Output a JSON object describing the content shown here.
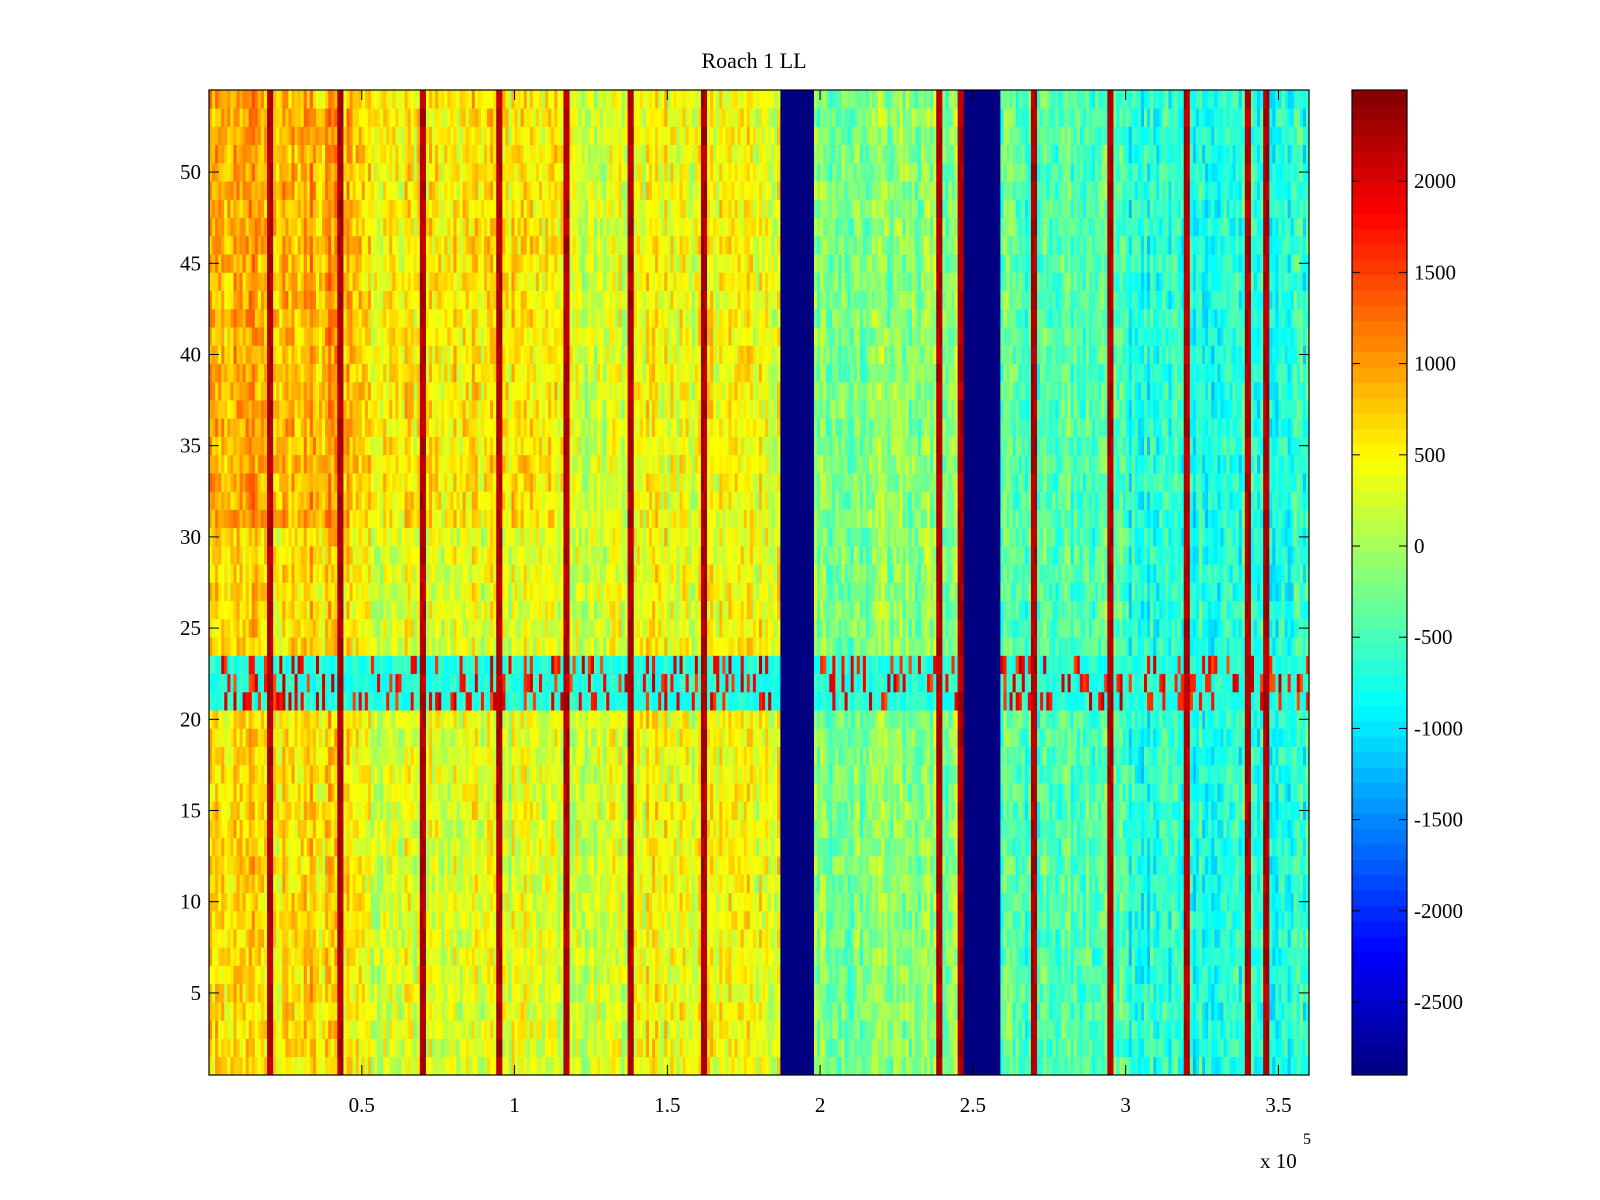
{
  "chart_data": {
    "type": "heatmap",
    "title": "Roach 1 LL",
    "xlabel": "",
    "ylabel": "",
    "x_range": [
      0,
      360000
    ],
    "y_range": [
      0.5,
      54.5
    ],
    "x_ticks": [
      50000,
      100000,
      150000,
      200000,
      250000,
      300000,
      350000
    ],
    "x_tick_labels": [
      "0.5",
      "1",
      "1.5",
      "2",
      "2.5",
      "3",
      "3.5"
    ],
    "x_exponent_label": "x 10",
    "x_exponent_power": "5",
    "y_ticks": [
      5,
      10,
      15,
      20,
      25,
      30,
      35,
      40,
      45,
      50
    ],
    "y_tick_labels": [
      "5",
      "10",
      "15",
      "20",
      "25",
      "30",
      "35",
      "40",
      "45",
      "50"
    ],
    "colorbar": {
      "colormap": "jet",
      "range": [
        -2900,
        2500
      ],
      "ticks": [
        -2500,
        -2000,
        -1500,
        -1000,
        -500,
        0,
        500,
        1000,
        1500,
        2000
      ],
      "tick_labels": [
        "-2500",
        "-2000",
        "-1500",
        "-1000",
        "-500",
        "0",
        "500",
        "1000",
        "1500",
        "2000"
      ]
    },
    "approx_row_band_values": [
      {
        "x_range": [
          0,
          50000
        ],
        "mean_value": 650
      },
      {
        "x_range": [
          50000,
          100000
        ],
        "mean_value": 300
      },
      {
        "x_range": [
          100000,
          140000
        ],
        "mean_value": 250
      },
      {
        "x_range": [
          140000,
          187000
        ],
        "mean_value": 400
      },
      {
        "x_range": [
          187000,
          198000
        ],
        "mean_value": -2900
      },
      {
        "x_range": [
          198000,
          247000
        ],
        "mean_value": -150
      },
      {
        "x_range": [
          247000,
          259000
        ],
        "mean_value": -2900
      },
      {
        "x_range": [
          259000,
          300000
        ],
        "mean_value": -400
      },
      {
        "x_range": [
          300000,
          360000
        ],
        "mean_value": -700
      }
    ],
    "special_rows": {
      "y_range": [
        20.5,
        23.5
      ],
      "description_value": -700
    },
    "grid": false
  },
  "colors": {
    "background": "#ffffff",
    "axis": "#000000"
  }
}
